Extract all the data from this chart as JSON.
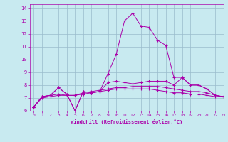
{
  "xlabel": "Windchill (Refroidissement éolien,°C)",
  "xlim": [
    -0.5,
    23
  ],
  "ylim": [
    6,
    14.3
  ],
  "yticks": [
    6,
    7,
    8,
    9,
    10,
    11,
    12,
    13,
    14
  ],
  "xticks": [
    0,
    1,
    2,
    3,
    4,
    5,
    6,
    7,
    8,
    9,
    10,
    11,
    12,
    13,
    14,
    15,
    16,
    17,
    18,
    19,
    20,
    21,
    22,
    23
  ],
  "background_color": "#c8eaf0",
  "line_color": "#aa00aa",
  "grid_color": "#99bbcc",
  "lines": [
    {
      "x": [
        0,
        1,
        2,
        3,
        4,
        5,
        6,
        7,
        8,
        9,
        10,
        11,
        12,
        13,
        14,
        15,
        16,
        17,
        18,
        19,
        20,
        21,
        22,
        23
      ],
      "y": [
        6.3,
        7.1,
        7.2,
        7.8,
        7.3,
        6.0,
        7.5,
        7.4,
        7.5,
        8.9,
        10.4,
        13.0,
        13.6,
        12.6,
        12.5,
        11.5,
        11.1,
        8.6,
        8.6,
        8.0,
        8.0,
        7.7,
        7.2,
        7.1
      ]
    },
    {
      "x": [
        0,
        1,
        2,
        3,
        4,
        5,
        6,
        7,
        8,
        9,
        10,
        11,
        12,
        13,
        14,
        15,
        16,
        17,
        18,
        19,
        20,
        21,
        22,
        23
      ],
      "y": [
        6.3,
        7.1,
        7.2,
        7.8,
        7.3,
        6.0,
        7.5,
        7.4,
        7.5,
        8.2,
        8.3,
        8.2,
        8.1,
        8.2,
        8.3,
        8.3,
        8.3,
        8.0,
        8.6,
        8.0,
        8.0,
        7.7,
        7.2,
        7.1
      ]
    },
    {
      "x": [
        0,
        1,
        2,
        3,
        4,
        5,
        6,
        7,
        8,
        9,
        10,
        11,
        12,
        13,
        14,
        15,
        16,
        17,
        18,
        19,
        20,
        21,
        22,
        23
      ],
      "y": [
        6.3,
        7.1,
        7.2,
        7.3,
        7.2,
        7.2,
        7.4,
        7.5,
        7.6,
        7.7,
        7.8,
        7.8,
        7.9,
        7.9,
        7.9,
        7.9,
        7.8,
        7.7,
        7.6,
        7.5,
        7.5,
        7.4,
        7.2,
        7.1
      ]
    },
    {
      "x": [
        0,
        1,
        2,
        3,
        4,
        5,
        6,
        7,
        8,
        9,
        10,
        11,
        12,
        13,
        14,
        15,
        16,
        17,
        18,
        19,
        20,
        21,
        22,
        23
      ],
      "y": [
        6.3,
        7.0,
        7.1,
        7.2,
        7.2,
        7.2,
        7.3,
        7.4,
        7.5,
        7.6,
        7.7,
        7.7,
        7.7,
        7.7,
        7.7,
        7.6,
        7.5,
        7.4,
        7.4,
        7.3,
        7.3,
        7.2,
        7.1,
        7.1
      ]
    }
  ]
}
